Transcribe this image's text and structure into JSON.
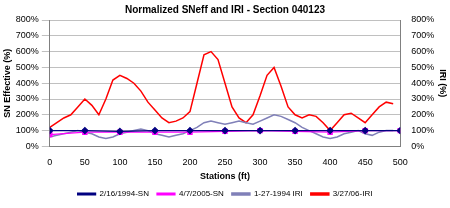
{
  "chart_data": {
    "type": "line",
    "title": "Normalized SNeff and IRI - Section 040123",
    "x_label": "Stations (ft)",
    "y_label": "SN Effective (%)",
    "y2_label": "IRI (%)",
    "xlim": [
      0,
      500
    ],
    "xticks": [
      0,
      50,
      100,
      150,
      200,
      250,
      300,
      350,
      400,
      450,
      500
    ],
    "ylim": [
      0,
      800
    ],
    "yticks": [
      {
        "value": 0,
        "label": "0%"
      },
      {
        "value": 100,
        "label": "100%"
      },
      {
        "value": 200,
        "label": "200%"
      },
      {
        "value": 300,
        "label": "300%"
      },
      {
        "value": 400,
        "label": "400%"
      },
      {
        "value": 500,
        "label": "500%"
      },
      {
        "value": 600,
        "label": "600%"
      },
      {
        "value": 700,
        "label": "700%"
      },
      {
        "value": 800,
        "label": "800%"
      }
    ],
    "y2lim": [
      0,
      800
    ],
    "y2ticks": [
      {
        "value": 0,
        "label": "0%"
      },
      {
        "value": 100,
        "label": "100%"
      },
      {
        "value": 200,
        "label": "200%"
      },
      {
        "value": 300,
        "label": "300%"
      },
      {
        "value": 400,
        "label": "400%"
      },
      {
        "value": 500,
        "label": "500%"
      },
      {
        "value": 600,
        "label": "600%"
      },
      {
        "value": 700,
        "label": "700%"
      },
      {
        "value": 800,
        "label": "800%"
      }
    ],
    "grid": true,
    "legend": "bottom",
    "series": [
      {
        "name": "2/16/1994-SN",
        "color": "#000080",
        "marker": "diamond",
        "x": [
          0,
          50,
          100,
          150,
          200,
          250,
          300,
          350,
          400,
          450,
          500
        ],
        "values": [
          100,
          100,
          95,
          100,
          100,
          100,
          100,
          100,
          100,
          100,
          100
        ]
      },
      {
        "name": "4/7/2005-SN",
        "color": "#ff00ff",
        "marker": "square",
        "x": [
          0,
          50,
          100,
          150,
          200,
          250,
          300,
          350,
          400,
          450,
          500
        ],
        "values": [
          75,
          90,
          90,
          90,
          90,
          95,
          100,
          95,
          90,
          100,
          100
        ]
      },
      {
        "name": "1-27-1994 IRI",
        "color": "#8080b8",
        "marker": "none",
        "axis": "y2",
        "x": [
          0,
          10,
          20,
          30,
          40,
          50,
          60,
          70,
          80,
          90,
          100,
          110,
          120,
          130,
          140,
          150,
          160,
          170,
          180,
          190,
          200,
          210,
          220,
          230,
          240,
          250,
          260,
          270,
          280,
          290,
          300,
          310,
          320,
          330,
          340,
          350,
          360,
          370,
          380,
          390,
          400,
          410,
          420,
          430,
          440,
          450,
          460,
          470,
          480,
          490
        ],
        "values": [
          60,
          70,
          80,
          90,
          100,
          90,
          80,
          60,
          50,
          60,
          80,
          90,
          100,
          110,
          100,
          80,
          70,
          60,
          70,
          80,
          100,
          120,
          150,
          160,
          150,
          140,
          150,
          160,
          150,
          140,
          160,
          180,
          200,
          190,
          170,
          150,
          120,
          100,
          80,
          60,
          50,
          60,
          80,
          90,
          100,
          80,
          70,
          90,
          100,
          100
        ]
      },
      {
        "name": "3/27/06-IRI",
        "color": "#ff0000",
        "marker": "none",
        "axis": "y2",
        "x": [
          0,
          10,
          20,
          30,
          40,
          50,
          60,
          70,
          80,
          90,
          100,
          110,
          120,
          130,
          140,
          150,
          160,
          170,
          180,
          190,
          200,
          210,
          220,
          230,
          240,
          250,
          260,
          270,
          280,
          290,
          300,
          310,
          320,
          330,
          340,
          350,
          360,
          370,
          380,
          390,
          400,
          410,
          420,
          430,
          440,
          450,
          460,
          470,
          480,
          490
        ],
        "values": [
          120,
          150,
          180,
          200,
          250,
          300,
          260,
          200,
          300,
          420,
          450,
          430,
          400,
          350,
          280,
          230,
          180,
          150,
          160,
          180,
          220,
          400,
          580,
          600,
          550,
          400,
          250,
          180,
          150,
          200,
          320,
          450,
          500,
          380,
          250,
          200,
          180,
          200,
          190,
          150,
          100,
          150,
          200,
          210,
          180,
          150,
          200,
          250,
          280,
          270
        ]
      }
    ]
  }
}
